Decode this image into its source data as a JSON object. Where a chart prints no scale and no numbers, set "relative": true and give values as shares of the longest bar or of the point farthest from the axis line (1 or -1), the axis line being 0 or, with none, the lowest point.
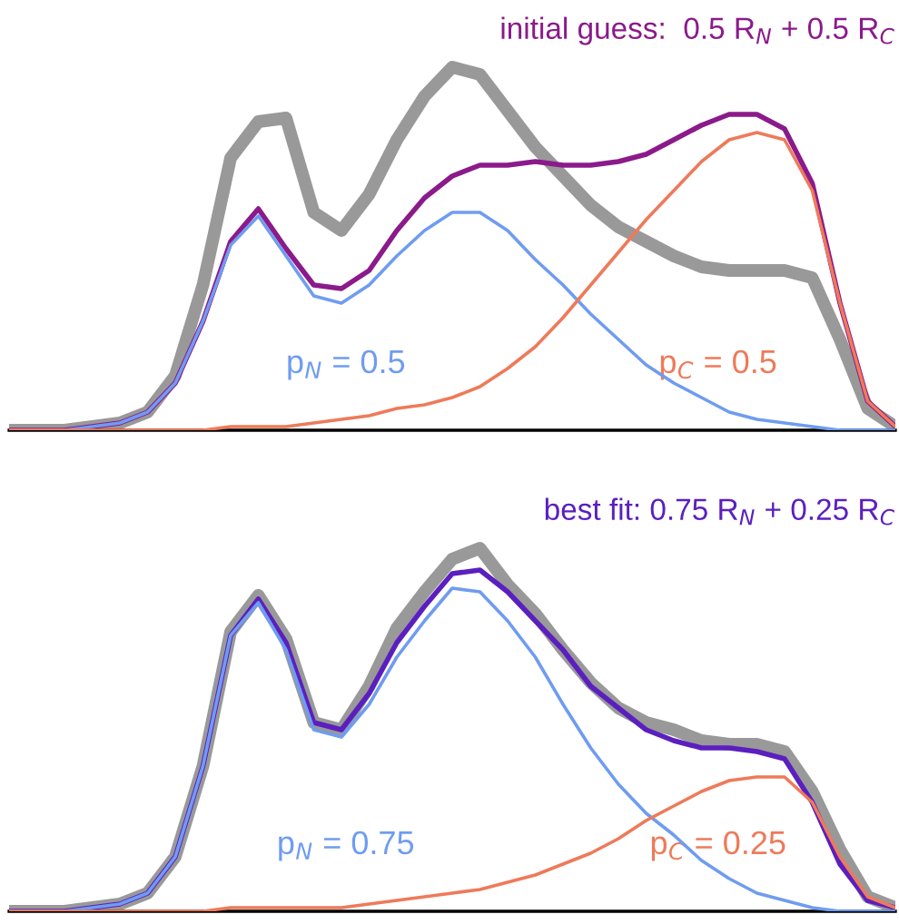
{
  "chart_data": [
    {
      "type": "line",
      "relative": true,
      "title": "initial guess:  0.5 R$_{N}$ + 0.5 R$_{C}$",
      "categories": [
        null,
        null,
        null,
        null,
        null,
        null,
        null,
        null,
        null,
        null,
        null,
        null,
        null,
        null,
        null,
        null,
        null,
        null,
        null,
        null,
        null,
        null,
        null,
        null,
        null,
        null,
        null,
        null,
        null,
        null,
        null,
        null,
        null
      ],
      "series": [
        {
          "color": "#999999",
          "values": [
            0,
            0,
            0,
            0.01,
            0.02,
            0.05,
            0.15,
            0.4,
            0.75,
            0.85,
            0.86,
            0.6,
            0.55,
            0.65,
            0.8,
            0.92,
            1,
            0.98,
            0.88,
            0.78,
            0.7,
            0.62,
            0.56,
            0.52,
            0.48,
            0.45,
            0.44,
            0.44,
            0.44,
            0.42,
            0.25,
            0.06,
            0.01
          ]
        },
        {
          "color": "#8b1a8b",
          "values": [
            0,
            0,
            0,
            0.01,
            0.02,
            0.05,
            0.13,
            0.3,
            0.52,
            0.61,
            0.5,
            0.4,
            0.39,
            0.44,
            0.55,
            0.64,
            0.7,
            0.73,
            0.73,
            0.74,
            0.73,
            0.73,
            0.74,
            0.76,
            0.8,
            0.84,
            0.87,
            0.87,
            0.83,
            0.68,
            0.35,
            0.08,
            0.01
          ]
        },
        {
          "name": "p$_{N}$ = 0.5",
          "color": "#6f9cf0",
          "values": [
            0,
            0,
            0,
            0.01,
            0.02,
            0.05,
            0.13,
            0.3,
            0.51,
            0.59,
            0.48,
            0.37,
            0.35,
            0.4,
            0.48,
            0.55,
            0.6,
            0.6,
            0.55,
            0.47,
            0.4,
            0.32,
            0.25,
            0.18,
            0.13,
            0.09,
            0.05,
            0.03,
            0.02,
            0.01,
            0,
            0,
            0
          ]
        },
        {
          "name": "p$_{C}$ = 0.5",
          "color": "#ee7a5a",
          "values": [
            0,
            0,
            0,
            0,
            0,
            0,
            0,
            0,
            0.01,
            0.01,
            0.01,
            0.02,
            0.03,
            0.04,
            0.06,
            0.07,
            0.09,
            0.12,
            0.17,
            0.23,
            0.31,
            0.4,
            0.49,
            0.58,
            0.66,
            0.74,
            0.8,
            0.82,
            0.8,
            0.66,
            0.35,
            0.08,
            0.01
          ]
        }
      ]
    },
    {
      "type": "line",
      "relative": true,
      "title": "best fit: 0.75 R$_{N}$ + 0.25 R$_{C}$",
      "categories": [
        null,
        null,
        null,
        null,
        null,
        null,
        null,
        null,
        null,
        null,
        null,
        null,
        null,
        null,
        null,
        null,
        null,
        null,
        null,
        null,
        null,
        null,
        null,
        null,
        null,
        null,
        null,
        null,
        null,
        null,
        null,
        null,
        null
      ],
      "series": [
        {
          "color": "#999999",
          "values": [
            0,
            0,
            0,
            0.01,
            0.02,
            0.05,
            0.15,
            0.4,
            0.77,
            0.87,
            0.75,
            0.52,
            0.5,
            0.62,
            0.78,
            0.88,
            0.97,
            1,
            0.9,
            0.82,
            0.72,
            0.63,
            0.56,
            0.52,
            0.5,
            0.47,
            0.46,
            0.46,
            0.44,
            0.33,
            0.17,
            0.04,
            0.01
          ]
        },
        {
          "color": "#5b1fbf",
          "values": [
            0,
            0,
            0,
            0.01,
            0.02,
            0.05,
            0.15,
            0.4,
            0.76,
            0.86,
            0.74,
            0.52,
            0.5,
            0.6,
            0.74,
            0.84,
            0.93,
            0.94,
            0.88,
            0.8,
            0.72,
            0.62,
            0.56,
            0.5,
            0.47,
            0.45,
            0.45,
            0.44,
            0.42,
            0.3,
            0.13,
            0.03,
            0.01
          ]
        },
        {
          "name": "p$_{N}$ = 0.75",
          "color": "#6f9cf0",
          "values": [
            0,
            0,
            0,
            0.01,
            0.02,
            0.05,
            0.15,
            0.4,
            0.76,
            0.85,
            0.72,
            0.5,
            0.48,
            0.57,
            0.7,
            0.8,
            0.89,
            0.88,
            0.8,
            0.7,
            0.57,
            0.45,
            0.35,
            0.27,
            0.21,
            0.14,
            0.09,
            0.05,
            0.03,
            0.01,
            0,
            0,
            0
          ]
        },
        {
          "name": "p$_{C}$ = 0.25",
          "color": "#ee7a5a",
          "values": [
            0,
            0,
            0,
            0,
            0,
            0,
            0,
            0,
            0.01,
            0.01,
            0.01,
            0.01,
            0.01,
            0.02,
            0.03,
            0.04,
            0.05,
            0.06,
            0.08,
            0.1,
            0.13,
            0.16,
            0.2,
            0.25,
            0.29,
            0.33,
            0.36,
            0.37,
            0.37,
            0.3,
            0.15,
            0.04,
            0.01
          ]
        }
      ]
    }
  ]
}
